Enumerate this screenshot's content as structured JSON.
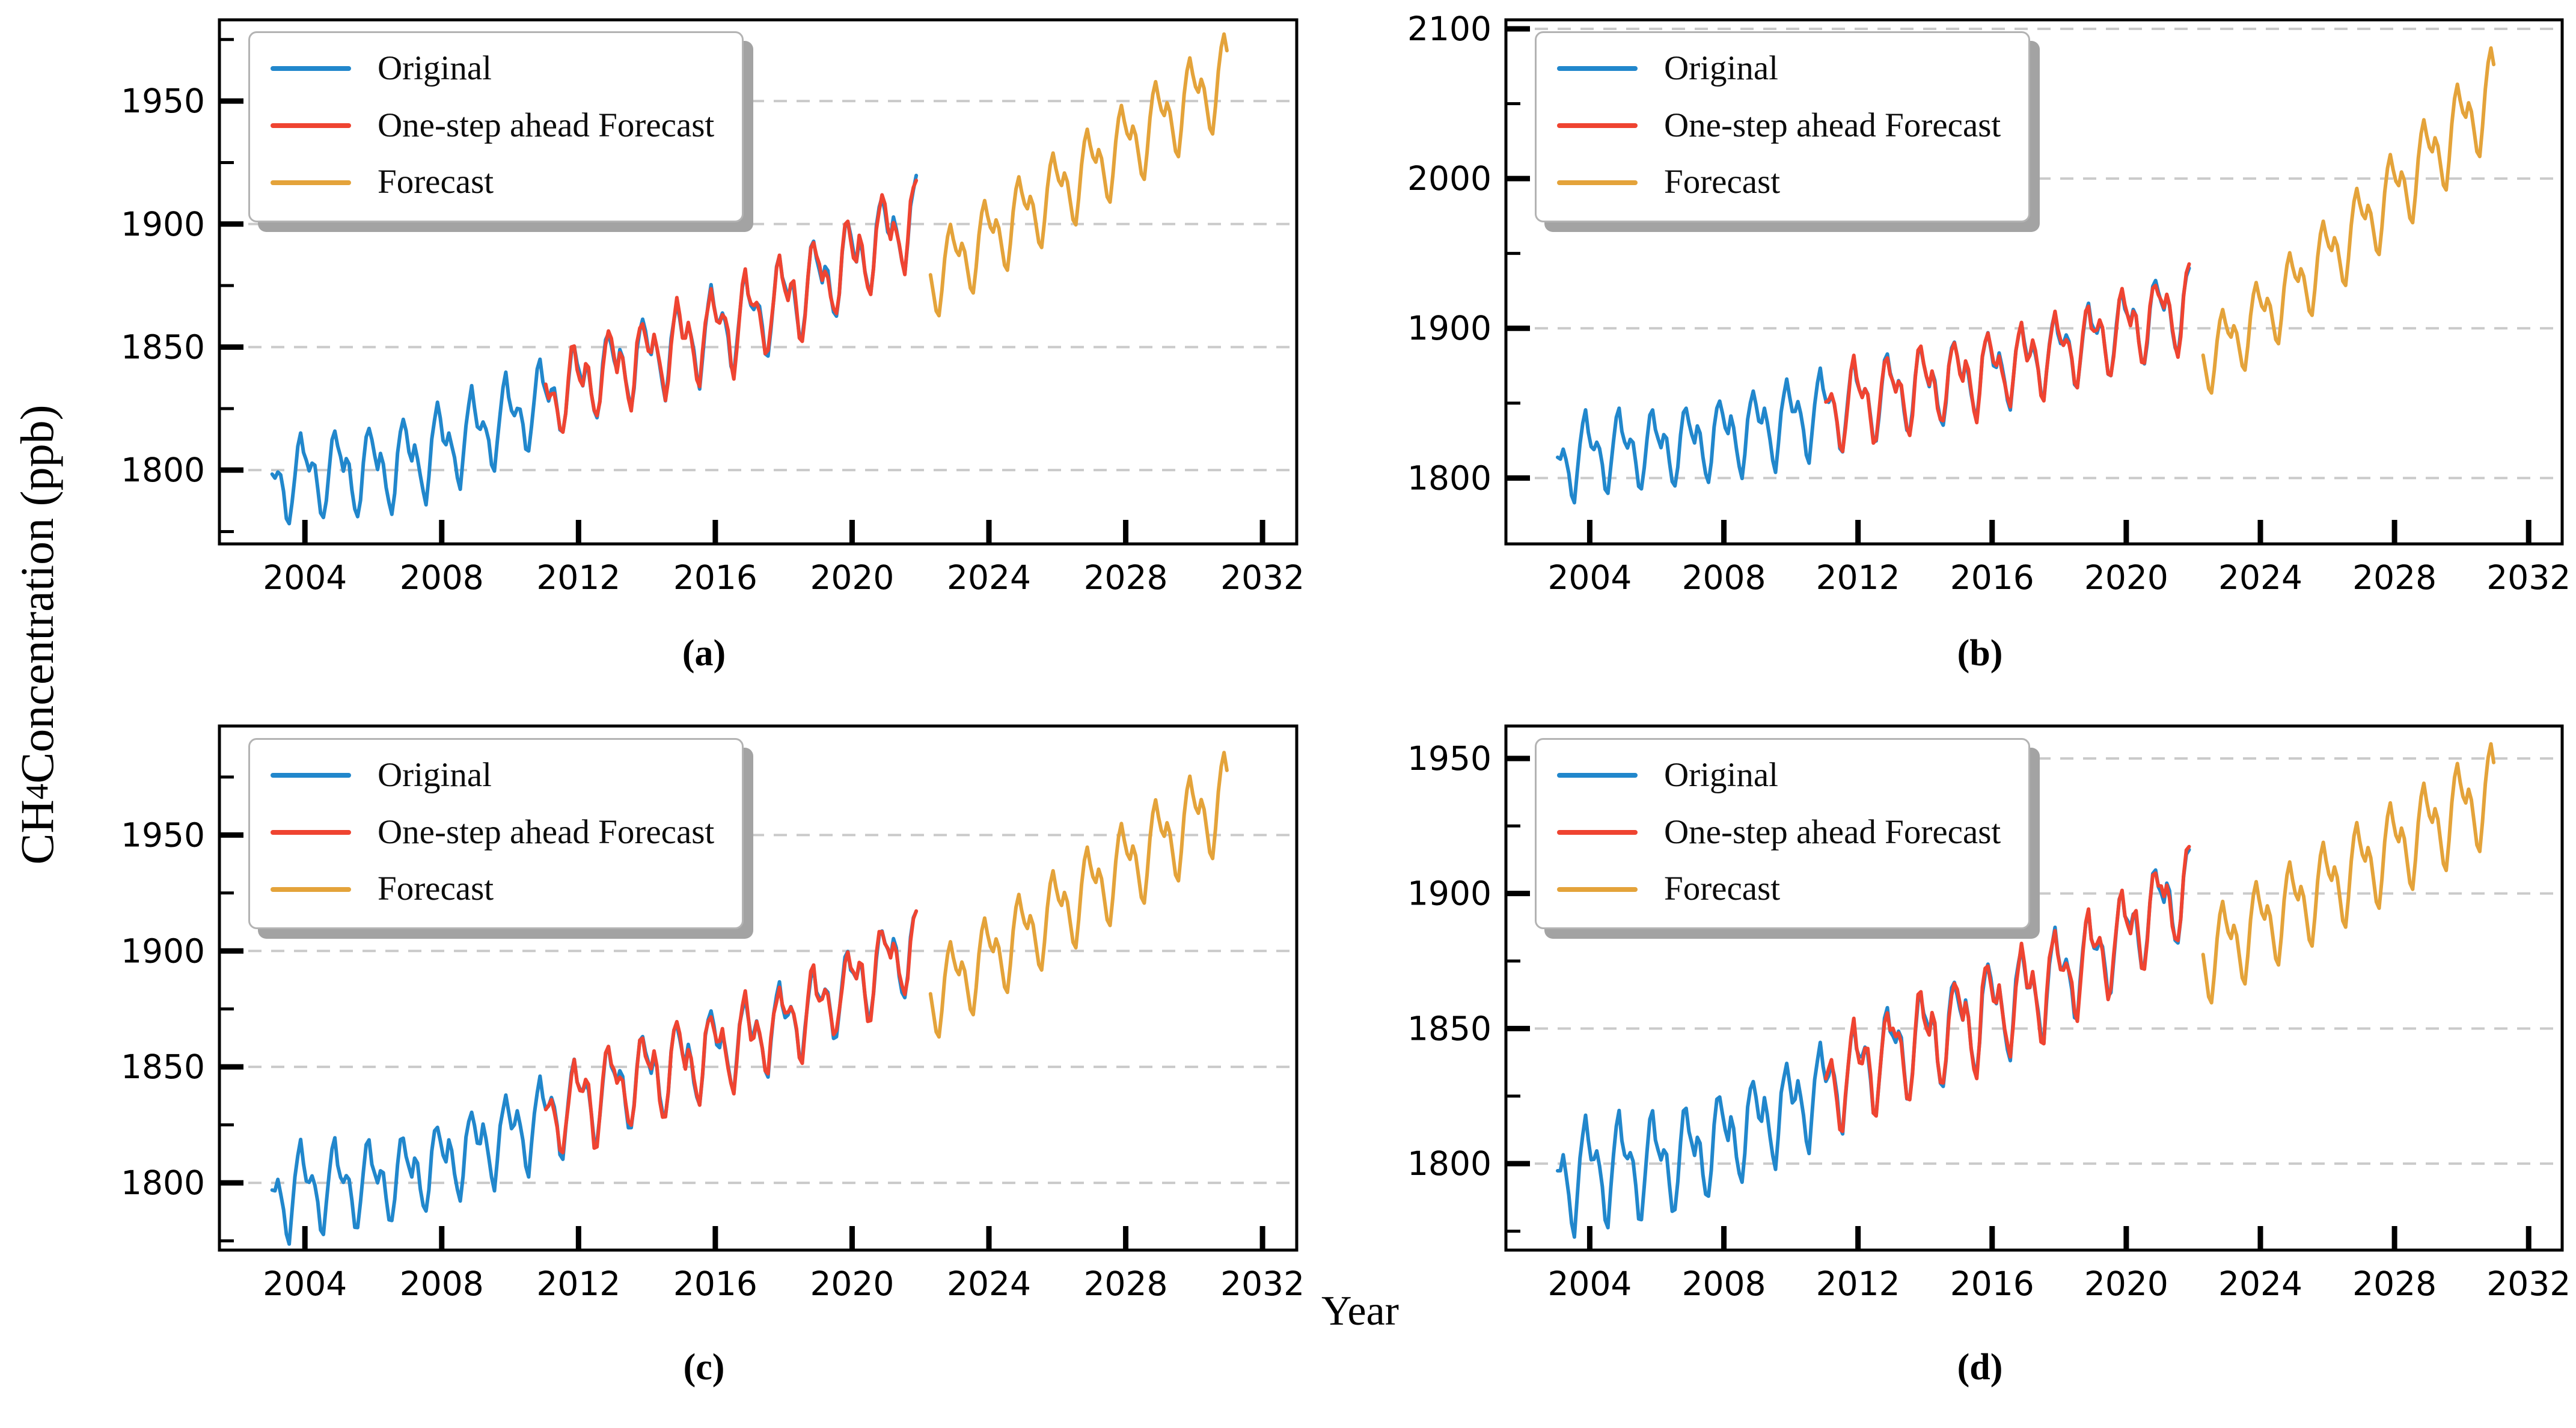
{
  "figure": {
    "ylabel": {
      "base": "CH",
      "sub": "4",
      "rest": " Concentration (ppb)"
    },
    "xlabel": "Year",
    "background_color": "#ffffff",
    "grid_color": "#cacaca",
    "spine_color": "#000000",
    "tick_label_color": "#000000"
  },
  "legend": {
    "items": [
      {
        "label": "Original",
        "color": "#2187cc"
      },
      {
        "label": "One-step ahead Forecast",
        "color": "#ef4431"
      },
      {
        "label": "Forecast",
        "color": "#e4a33a"
      }
    ]
  },
  "chart_data": {
    "type": "line",
    "x_axis": {
      "label": "Year",
      "lim": [
        2001.5,
        2033.0
      ],
      "ticks": [
        2004,
        2008,
        2012,
        2016,
        2020,
        2024,
        2028,
        2032
      ]
    },
    "y_axis_label": "CH4 Concentration (ppb)",
    "grid": "dashed horizontal at major y ticks",
    "legend_position": "upper left",
    "months_per_point": 1,
    "seasonal_profile_ppb": [
      3,
      1,
      4,
      1,
      -5,
      -11,
      -13,
      -6,
      3,
      9,
      12,
      7
    ],
    "annual_means_default": {
      "2003": 1794,
      "2004": 1798,
      "2005": 1799,
      "2006": 1800,
      "2007": 1803,
      "2008": 1809,
      "2009": 1815,
      "2010": 1821,
      "2011": 1828,
      "2012": 1835,
      "2013": 1841,
      "2014": 1846,
      "2015": 1851,
      "2016": 1857,
      "2017": 1862,
      "2018": 1869,
      "2019": 1876,
      "2020": 1885,
      "2021": 1895,
      "2022": 1903
    },
    "panels": [
      {
        "caption": "(a)",
        "ylim": [
          1770,
          1983
        ],
        "yticks": [
          1800,
          1850,
          1900,
          1950
        ],
        "y_minor_step": 25,
        "original": {
          "start": 2003.04,
          "end": 2021.88,
          "seasonal_amp": 1.4,
          "noise_ppb": 2.6,
          "seed": 0
        },
        "one_step": {
          "start": 2011.04,
          "end": 2021.88,
          "deviation_ppb": 3.0,
          "seed": 2
        },
        "forecast": {
          "start": 2022.29,
          "end": 2030.96,
          "mean_start": 1878,
          "mean_end": 1960,
          "amp_start": 1.35,
          "amp_end": 1.5,
          "growth_power": 1.0
        }
      },
      {
        "caption": "(b)",
        "ylim": [
          1756,
          2106
        ],
        "yticks": [
          1800,
          1900,
          2000,
          2100
        ],
        "y_minor_step": 50,
        "original": {
          "start": 2003.04,
          "end": 2021.88,
          "seasonal_amp": 2.2,
          "noise_ppb": 3.2,
          "seed": 5,
          "annual_means": {
            "2003": 1810,
            "2004": 1817,
            "2005": 1819,
            "2006": 1820,
            "2007": 1823,
            "2008": 1828,
            "2009": 1833,
            "2010": 1839,
            "2011": 1845,
            "2012": 1851,
            "2013": 1856,
            "2014": 1861,
            "2015": 1866,
            "2016": 1872,
            "2017": 1878,
            "2018": 1885,
            "2019": 1892,
            "2020": 1900,
            "2021": 1909,
            "2022": 1916
          }
        },
        "one_step": {
          "start": 2011.04,
          "end": 2021.88,
          "deviation_ppb": 3.5,
          "seed": 7
        },
        "forecast": {
          "start": 2022.29,
          "end": 2030.96,
          "mean_start": 1880,
          "mean_end": 2058,
          "amp_start": 2.0,
          "amp_end": 2.6,
          "growth_power": 1.15
        }
      },
      {
        "caption": "(c)",
        "ylim": [
          1771,
          1997
        ],
        "yticks": [
          1800,
          1850,
          1900,
          1950
        ],
        "y_minor_step": 25,
        "original": {
          "start": 2003.04,
          "end": 2021.88,
          "seasonal_amp": 1.5,
          "noise_ppb": 2.8,
          "seed": 11
        },
        "one_step": {
          "start": 2011.04,
          "end": 2021.88,
          "deviation_ppb": 3.0,
          "seed": 13
        },
        "forecast": {
          "start": 2022.29,
          "end": 2030.96,
          "mean_start": 1880,
          "mean_end": 1966,
          "amp_start": 1.5,
          "amp_end": 1.7,
          "growth_power": 1.0
        }
      },
      {
        "caption": "(d)",
        "ylim": [
          1768,
          1962
        ],
        "yticks": [
          1800,
          1850,
          1900,
          1950
        ],
        "y_minor_step": 25,
        "original": {
          "start": 2003.04,
          "end": 2021.88,
          "seasonal_amp": 1.5,
          "noise_ppb": 2.8,
          "seed": 17
        },
        "one_step": {
          "start": 2011.04,
          "end": 2021.88,
          "deviation_ppb": 3.0,
          "seed": 19
        },
        "forecast": {
          "start": 2022.29,
          "end": 2030.96,
          "mean_start": 1876,
          "mean_end": 1938,
          "amp_start": 1.4,
          "amp_end": 1.5,
          "growth_power": 1.0
        }
      }
    ]
  }
}
